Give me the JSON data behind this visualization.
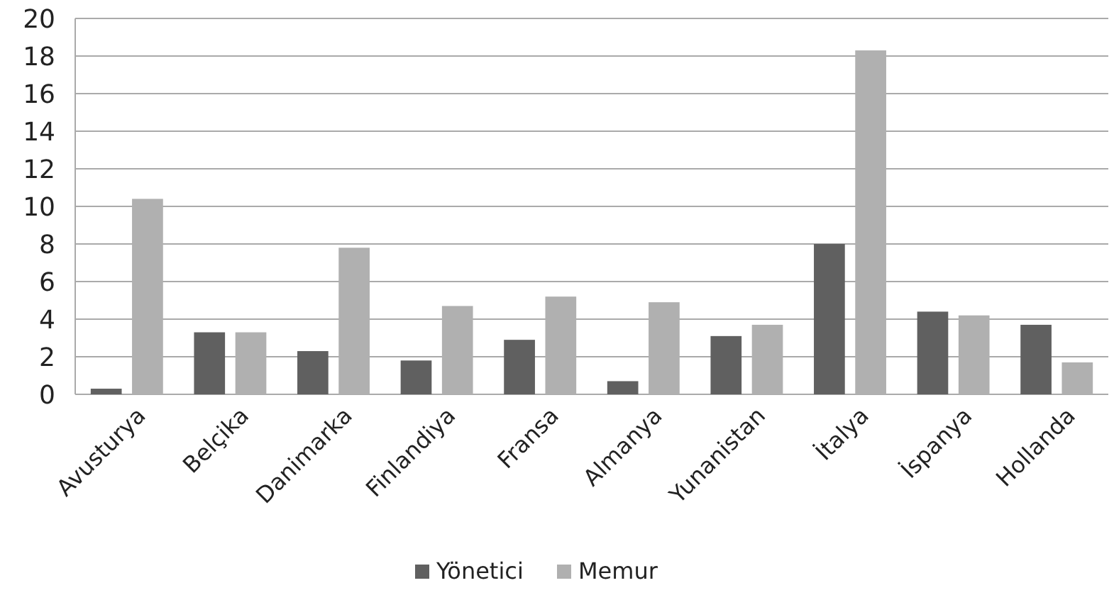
{
  "chart_data": {
    "type": "bar",
    "categories": [
      "Avusturya",
      "Belçika",
      "Danimarka",
      "Finlandiya",
      "Fransa",
      "Almanya",
      "Yunanistan",
      "İtalya",
      "İspanya",
      "Hollanda"
    ],
    "series": [
      {
        "name": "Yönetici",
        "color": "#606060",
        "values": [
          0.3,
          3.3,
          2.3,
          1.8,
          2.9,
          0.7,
          3.1,
          8.0,
          4.4,
          3.7
        ]
      },
      {
        "name": "Memur",
        "color": "#b0b0b0",
        "values": [
          10.4,
          3.3,
          7.8,
          4.7,
          5.2,
          4.9,
          3.7,
          18.3,
          4.2,
          1.7
        ]
      }
    ],
    "ylim": [
      0,
      20
    ],
    "yticks": [
      0,
      2,
      4,
      6,
      8,
      10,
      12,
      14,
      16,
      18,
      20
    ],
    "grid": "y",
    "legend": "bottom"
  }
}
